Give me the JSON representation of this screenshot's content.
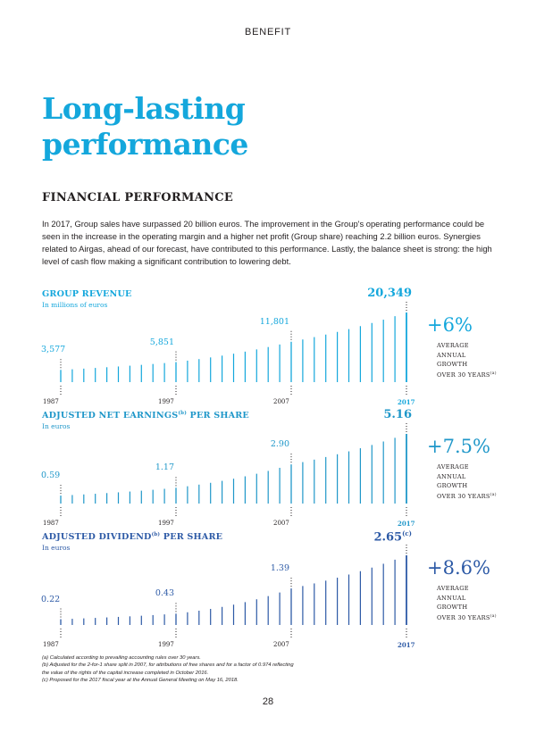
{
  "header": {
    "section_label": "BENEFIT"
  },
  "title": {
    "line1": "Long-lasting",
    "line2": "performance"
  },
  "subtitle": "FINANCIAL PERFORMANCE",
  "intro": "In 2017, Group sales have surpassed 20 billion euros. The improvement in the Group's operating performance could be seen in the increase in the operating margin and a higher net profit (Group share) reaching 2.2 billion euros. Synergies related to Airgas, ahead of our forecast, have contributed to this performance. Lastly, the balance sheet is strong: the high level of cash flow making a significant contribution to lowering debt.",
  "charts": {
    "revenue": {
      "title": "GROUP REVENUE",
      "title_sup": "",
      "title_tail": "",
      "subtitle": "In millions of euros",
      "final_value": "20,349",
      "final_sup": "",
      "label_2007": "11,801",
      "label_1997": "5,851",
      "label_1987": "3,577",
      "growth": "+6%",
      "growth_lines": [
        "AVERAGE",
        "ANNUAL",
        "GROWTH",
        "OVER 30 YEARS"
      ],
      "growth_sup": "(a)",
      "years": [
        "1987",
        "1997",
        "2007",
        "2017"
      ]
    },
    "earnings": {
      "title": "ADJUSTED NET EARNINGS",
      "title_sup": "(b)",
      "title_tail": " PER SHARE",
      "subtitle": "In euros",
      "final_value": "5.16",
      "final_sup": "",
      "label_2007": "2.90",
      "label_1997": "1.17",
      "label_1987": "0.59",
      "growth": "+7.5%",
      "growth_lines": [
        "AVERAGE",
        "ANNUAL",
        "GROWTH",
        "OVER 30 YEARS"
      ],
      "growth_sup": "(a)",
      "years": [
        "1987",
        "1997",
        "2007",
        "2017"
      ]
    },
    "dividend": {
      "title": "ADJUSTED DIVIDEND",
      "title_sup": "(b)",
      "title_tail": " PER SHARE",
      "subtitle": "In euros",
      "final_value": "2.65",
      "final_sup": "(c)",
      "label_2007": "1.39",
      "label_1997": "0.43",
      "label_1987": "0.22",
      "growth": "+8.6%",
      "growth_lines": [
        "AVERAGE",
        "ANNUAL",
        "GROWTH",
        "OVER 30 YEARS"
      ],
      "growth_sup": "(a)",
      "years": [
        "1987",
        "1997",
        "2007",
        "2017"
      ]
    }
  },
  "colors": {
    "revenue": "#14a7dc",
    "earnings": "#1f97c9",
    "dividend": "#2d5aa6",
    "title": "#14a7dc",
    "text": "#231f20"
  },
  "chart_data": [
    {
      "type": "bar",
      "title": "GROUP REVENUE",
      "ylabel": "In millions of euros",
      "categories": [
        "1987",
        "1997",
        "2007",
        "2017"
      ],
      "values": [
        3577,
        5851,
        11801,
        20349
      ],
      "bar_count": 31,
      "annotation": "+6% average annual growth over 30 years"
    },
    {
      "type": "bar",
      "title": "ADJUSTED NET EARNINGS PER SHARE",
      "ylabel": "In euros",
      "categories": [
        "1987",
        "1997",
        "2007",
        "2017"
      ],
      "values": [
        0.59,
        1.17,
        2.9,
        5.16
      ],
      "bar_count": 31,
      "annotation": "+7.5% average annual growth over 30 years"
    },
    {
      "type": "bar",
      "title": "ADJUSTED DIVIDEND PER SHARE",
      "ylabel": "In euros",
      "categories": [
        "1987",
        "1997",
        "2007",
        "2017"
      ],
      "values": [
        0.22,
        0.43,
        1.39,
        2.65
      ],
      "bar_count": 31,
      "annotation": "+8.6% average annual growth over 30 years"
    }
  ],
  "footnotes": [
    "(a) Calculated according to prevailing accounting rules over 30 years.",
    "(b) Adjusted for the 2-for-1 share split in 2007, for attributions of free shares and for a factor of 0.974 reflecting",
    "the value of the rights of the capital increase completed in October 2016.",
    "(c) Proposed for the 2017 fiscal year at the Annual General Meeting on May 16, 2018."
  ],
  "page_number": "28"
}
